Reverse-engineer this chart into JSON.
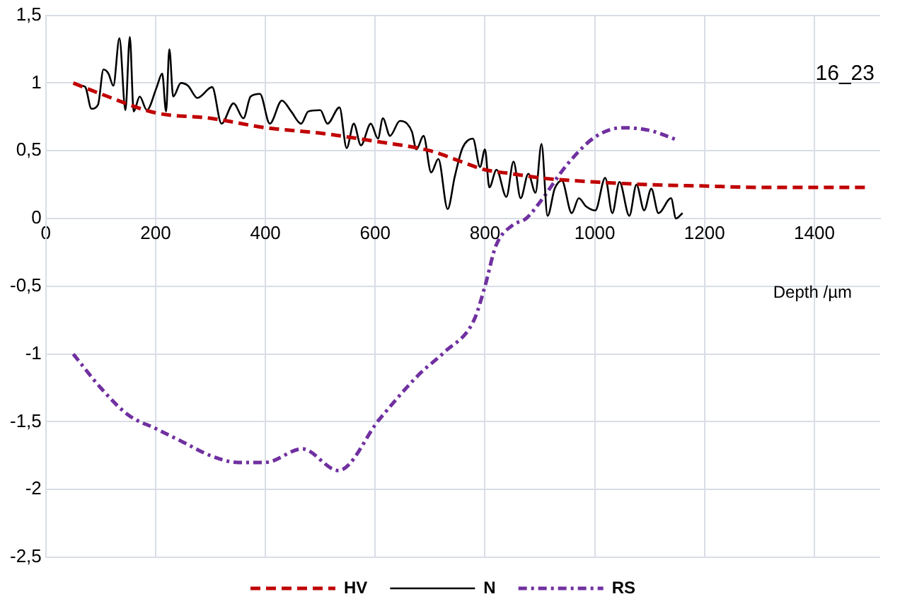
{
  "chart_data": {
    "type": "line",
    "xlabel": "Depth /µm",
    "annotations": [
      "16_23"
    ],
    "xlim": [
      0,
      1520
    ],
    "ylim": [
      -2.5,
      1.5
    ],
    "xticks": [
      0,
      200,
      400,
      600,
      800,
      1000,
      1200,
      1400
    ],
    "yticks": [
      {
        "value": -2.5,
        "label": "-2,5"
      },
      -2,
      {
        "value": -1.5,
        "label": "-1,5"
      },
      -1,
      {
        "value": -0.5,
        "label": "-0,5"
      },
      0,
      {
        "value": 0.5,
        "label": "0,5"
      },
      1,
      {
        "value": 1.5,
        "label": "1,5"
      }
    ],
    "grid": true,
    "legend": "bottom",
    "marker": "none",
    "series": [
      {
        "name": "HV",
        "color": "#c00000",
        "line_style": "dashed",
        "x": [
          50,
          100,
          200,
          300,
          400,
          500,
          600,
          700,
          750,
          800,
          850,
          900,
          1000,
          1100,
          1200,
          1300,
          1400,
          1500
        ],
        "values": [
          1.0,
          0.92,
          0.78,
          0.74,
          0.67,
          0.63,
          0.57,
          0.5,
          0.43,
          0.36,
          0.33,
          0.3,
          0.27,
          0.25,
          0.24,
          0.23,
          0.23,
          0.23
        ]
      },
      {
        "name": "N",
        "color": "#000000",
        "line_style": "solid",
        "x": [
          66,
          72,
          83,
          95,
          105,
          114,
          123,
          134,
          145,
          153,
          160,
          171,
          184,
          202,
          212,
          219,
          225,
          232,
          246,
          259,
          276,
          303,
          320,
          342,
          360,
          373,
          390,
          408,
          430,
          447,
          465,
          478,
          500,
          513,
          535,
          548,
          561,
          574,
          592,
          605,
          614,
          627,
          645,
          658,
          667,
          675,
          688,
          702,
          715,
          732,
          745,
          759,
          778,
          791,
          800,
          808,
          821,
          839,
          852,
          865,
          879,
          892,
          903,
          914,
          927,
          940,
          958,
          971,
          984,
          1001,
          1019,
          1032,
          1045,
          1063,
          1076,
          1090,
          1103,
          1116,
          1139,
          1148,
          1160
        ],
        "values": [
          0.98,
          0.97,
          0.81,
          0.84,
          1.1,
          1.07,
          0.98,
          1.33,
          0.8,
          1.34,
          0.79,
          0.9,
          0.8,
          0.97,
          1.07,
          0.79,
          1.25,
          0.9,
          1.0,
          0.98,
          0.89,
          0.97,
          0.7,
          0.85,
          0.74,
          0.9,
          0.92,
          0.7,
          0.87,
          0.79,
          0.7,
          0.79,
          0.8,
          0.7,
          0.82,
          0.52,
          0.7,
          0.54,
          0.7,
          0.59,
          0.74,
          0.61,
          0.72,
          0.7,
          0.64,
          0.51,
          0.61,
          0.34,
          0.44,
          0.07,
          0.31,
          0.52,
          0.59,
          0.38,
          0.51,
          0.23,
          0.36,
          0.16,
          0.42,
          0.15,
          0.33,
          0.19,
          0.55,
          0.02,
          0.22,
          0.28,
          0.04,
          0.15,
          0.09,
          0.06,
          0.3,
          0.04,
          0.27,
          0.02,
          0.25,
          0.06,
          0.22,
          0.04,
          0.15,
          0.0,
          0.04
        ]
      },
      {
        "name": "RS",
        "color": "#7030a0",
        "line_style": "dashdot",
        "x": [
          50,
          100,
          150,
          200,
          250,
          300,
          350,
          400,
          467,
          533,
          608,
          680,
          725,
          780,
          800,
          820,
          850,
          875,
          900,
          950,
          1000,
          1050,
          1100,
          1150
        ],
        "values": [
          -1.0,
          -1.25,
          -1.45,
          -1.55,
          -1.65,
          -1.75,
          -1.8,
          -1.8,
          -1.7,
          -1.86,
          -1.48,
          -1.15,
          -0.99,
          -0.75,
          -0.5,
          -0.2,
          -0.05,
          0.0,
          0.12,
          0.4,
          0.6,
          0.67,
          0.65,
          0.58
        ]
      }
    ]
  }
}
